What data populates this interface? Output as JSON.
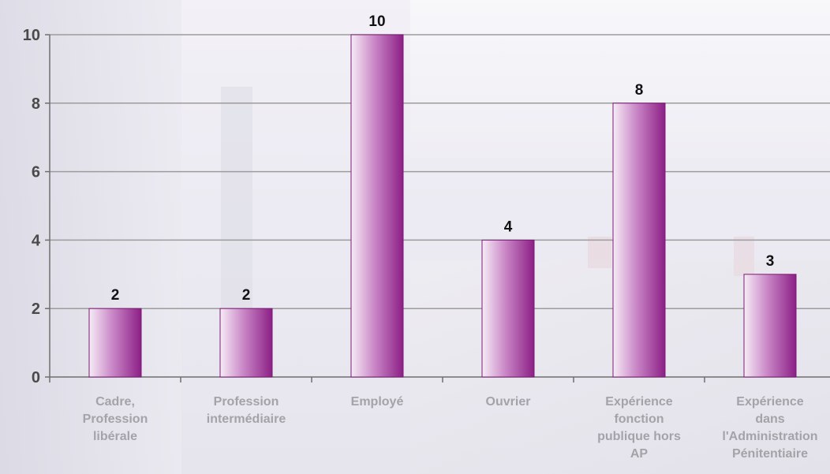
{
  "chart_data": {
    "type": "bar",
    "categories": [
      "Cadre, Profession libérale",
      "Profession intermédiaire",
      "Employé",
      "Ouvrier",
      "Expérience fonction publique hors AP",
      "Expérience dans l'Administration Pénitentiaire"
    ],
    "category_lines": [
      [
        "Cadre,",
        "Profession",
        "libérale"
      ],
      [
        "Profession",
        "intermédiaire"
      ],
      [
        "Employé"
      ],
      [
        "Ouvrier"
      ],
      [
        "Expérience",
        "fonction",
        "publique hors",
        "AP"
      ],
      [
        "Expérience",
        "dans",
        "l'Administration",
        "Pénitentiaire"
      ]
    ],
    "values": [
      2,
      2,
      10,
      4,
      8,
      3
    ],
    "data_labels": [
      "2",
      "2",
      "10",
      "4",
      "8",
      "3"
    ],
    "title": "",
    "xlabel": "",
    "ylabel": "",
    "ylim": [
      0,
      10
    ],
    "yticks": [
      "0",
      "2",
      "4",
      "6",
      "8",
      "10"
    ],
    "grid": true,
    "legend": "none",
    "colors": {
      "bar_light": "#f6ecf6",
      "bar_mid": "#c986c6",
      "bar_dark": "#8c1f86",
      "bar_edge": "#7a1a74",
      "grid": "#9c9c9c",
      "axis": "#6f6f6f"
    }
  }
}
